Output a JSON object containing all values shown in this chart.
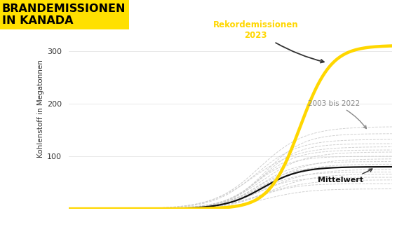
{
  "title_line1": "BRANDEMISSIONEN",
  "title_line2": "IN KANADA",
  "title_bg_color": "#FFE000",
  "title_fontsize": 11.5,
  "ylabel": "Kohlenstoff in Megatonnen",
  "ylabel_fontsize": 7.5,
  "yticks": [
    100,
    200,
    300
  ],
  "ylim": [
    0,
    380
  ],
  "xlim": [
    0,
    9.5
  ],
  "bg_color": "#ffffff",
  "annotation_2023": "Rekordemissionen\n2023",
  "annotation_hist": "2003 bis 2022",
  "annotation_mean": "Mittelwert",
  "color_2023": "#FFD700",
  "color_hist": "#cccccc",
  "color_mean": "#111111"
}
